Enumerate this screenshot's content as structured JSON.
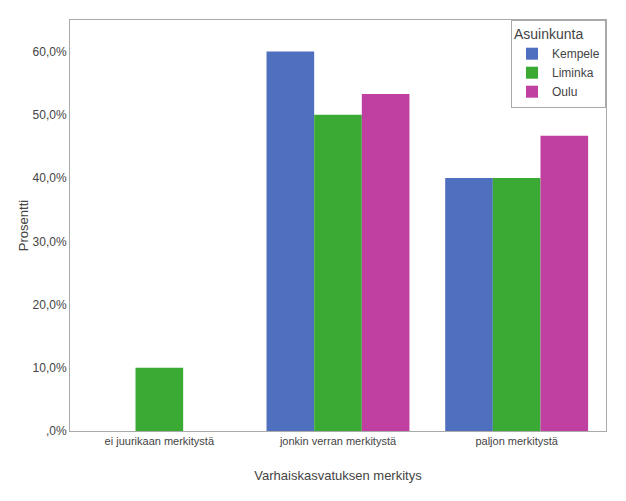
{
  "chart_data": {
    "type": "bar",
    "categories": [
      "ei juurikaan merkitystä",
      "jonkin verran merkitystä",
      "paljon merkitystä"
    ],
    "series": [
      {
        "name": "Kempele",
        "color": "#4f6fbf",
        "values": [
          0.0,
          60.0,
          40.0
        ]
      },
      {
        "name": "Liminka",
        "color": "#3aaa35",
        "values": [
          10.0,
          50.0,
          40.0
        ]
      },
      {
        "name": "Oulu",
        "color": "#bf40a0",
        "values": [
          0.0,
          53.3,
          46.7
        ]
      }
    ],
    "legend_title": "Asuinkunta",
    "xlabel": "Varhaiskasvatuksen merkitys",
    "ylabel": "Prosentti",
    "ylim": [
      0,
      65
    ],
    "yticks": [
      {
        "value": 0,
        "label": ",0%"
      },
      {
        "value": 10,
        "label": "10,0%"
      },
      {
        "value": 20,
        "label": "20,0%"
      },
      {
        "value": 30,
        "label": "30,0%"
      },
      {
        "value": 40,
        "label": "40,0%"
      },
      {
        "value": 50,
        "label": "50,0%"
      },
      {
        "value": 60,
        "label": "60,0%"
      }
    ],
    "grid": false,
    "legend": "upper right"
  }
}
